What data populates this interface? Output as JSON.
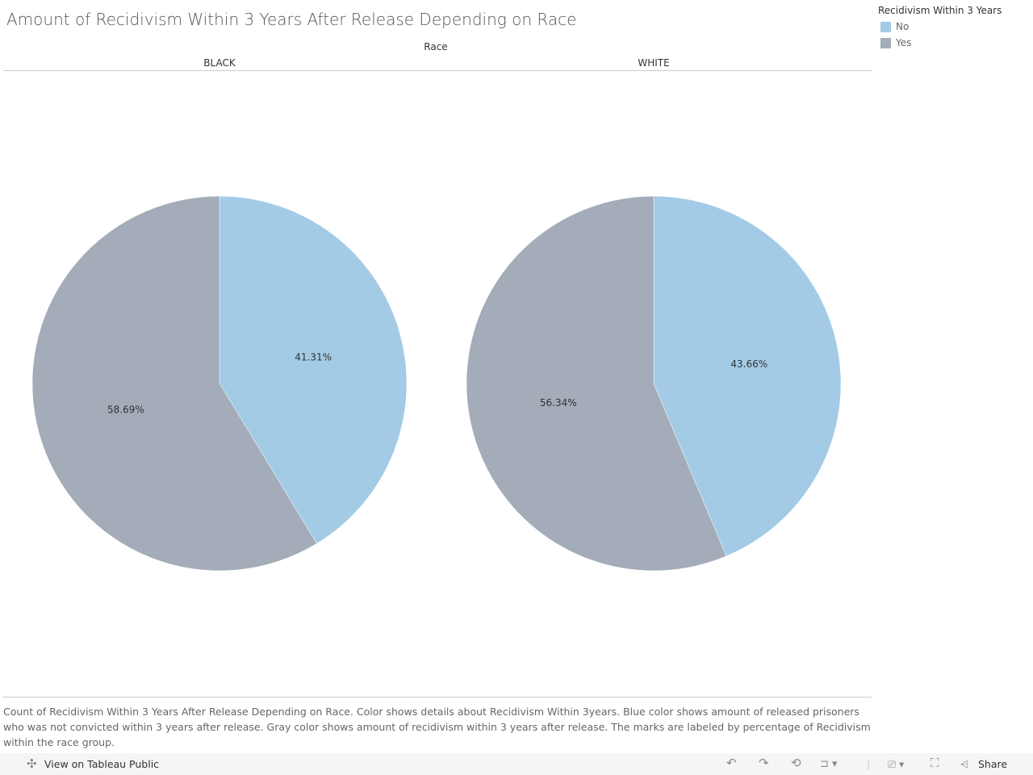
{
  "chart_data": {
    "type": "pie",
    "title": "Amount of Recidivism Within 3 Years After Release Depending on Race",
    "facet_label": "Race",
    "legend": {
      "title": "Recidivism Within 3 Years",
      "position": "top-right",
      "entries": [
        {
          "name": "No",
          "color": "#a3cbe6"
        },
        {
          "name": "Yes",
          "color": "#a3acb8"
        }
      ]
    },
    "pies": [
      {
        "category": "BLACK",
        "slices": [
          {
            "name": "No",
            "value": 41.31,
            "label": "41.31%"
          },
          {
            "name": "Yes",
            "value": 58.69,
            "label": "58.69%"
          }
        ]
      },
      {
        "category": "WHITE",
        "slices": [
          {
            "name": "No",
            "value": 43.66,
            "label": "43.66%"
          },
          {
            "name": "Yes",
            "value": 56.34,
            "label": "56.34%"
          }
        ]
      }
    ]
  },
  "caption": "Count of Recidivism Within 3 Years After Release Depending on Race.  Color shows details about Recidivism Within 3years. Blue color shows amount of released prisoners who was not convicted within 3 years after release. Gray color shows amount of recidivism within 3 years after release.  The marks are labeled by percentage of Recidivism within the race group.",
  "footer": {
    "view_label": "View on Tableau Public",
    "share_label": "Share"
  }
}
